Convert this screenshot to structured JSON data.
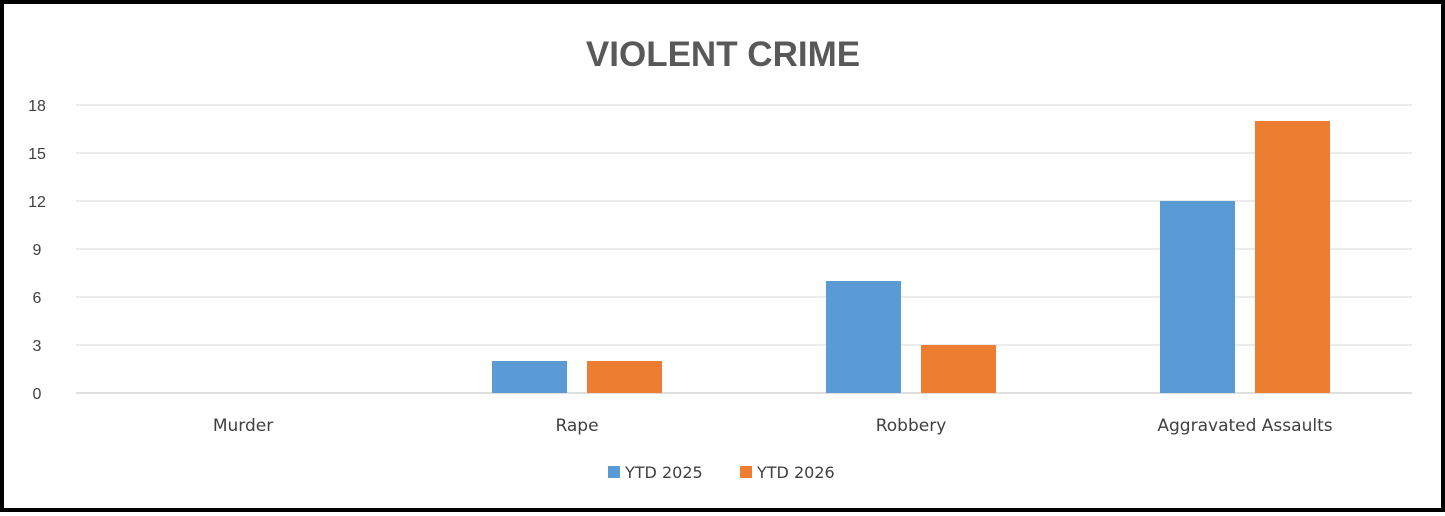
{
  "chart_data": {
    "type": "bar",
    "title": "VIOLENT CRIME",
    "categories": [
      "Murder",
      "Rape",
      "Robbery",
      "Aggravated Assaults"
    ],
    "series": [
      {
        "name": "YTD 2025",
        "color": "#5B9BD5",
        "values": [
          0,
          2,
          7,
          12
        ]
      },
      {
        "name": "YTD 2026",
        "color": "#ED7D31",
        "values": [
          0,
          2,
          3,
          17
        ]
      }
    ],
    "ylim": [
      0,
      18
    ],
    "yticks": [
      0,
      3,
      6,
      9,
      12,
      15,
      18
    ],
    "grid": true,
    "legend_position": "bottom"
  }
}
